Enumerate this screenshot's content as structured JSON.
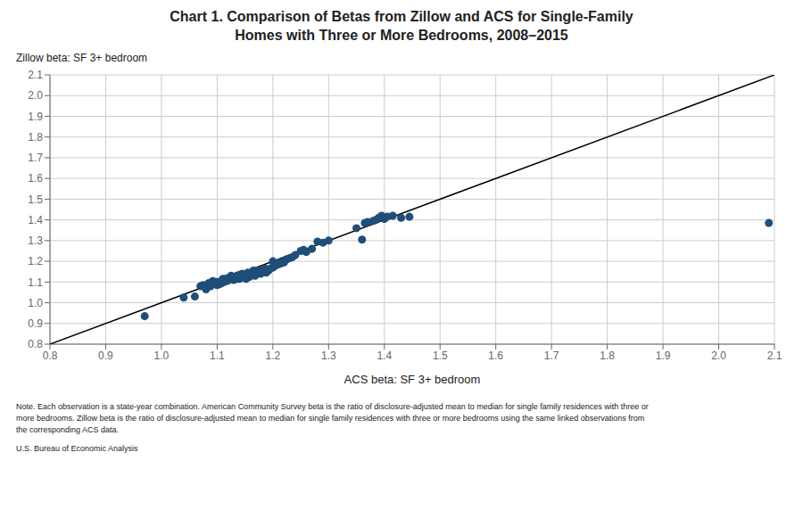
{
  "chart_data": {
    "type": "scatter",
    "title": "Chart 1. Comparison of Betas from Zillow and ACS for Single-Family\nHomes with Three or More Bedrooms, 2008–2015",
    "x_label": "ACS beta: SF 3+ bedroom",
    "y_label": "Zillow beta: SF 3+ bedroom",
    "xlim": [
      0.8,
      2.1
    ],
    "ylim": [
      0.8,
      2.1
    ],
    "xticks": [
      0.8,
      0.9,
      {
        "value": 1.0,
        "label": "1.0"
      },
      1.1,
      1.2,
      1.3,
      1.4,
      1.5,
      1.6,
      1.7,
      1.8,
      1.9,
      {
        "value": 2.0,
        "label": "2.0"
      },
      2.1
    ],
    "yticks": [
      0.8,
      0.9,
      {
        "value": 1.0,
        "label": "1.0"
      },
      1.1,
      1.2,
      1.3,
      1.4,
      1.5,
      1.6,
      1.7,
      1.8,
      1.9,
      {
        "value": 2.0,
        "label": "2.0"
      },
      2.1
    ],
    "grid": true,
    "annotations": [
      "Note. Each observation is a state-year combination. American Community Survey beta is the ratio of disclosure-adjusted mean to median for single family residences with three or\nmore bedrooms. Zillow beta is the ratio of disclosure-adjusted mean to median for single family residences with three or more bedrooms using the same linked observations from\nthe corresponding ACS data.",
      "U.S. Bureau of Economic Analysis"
    ],
    "series": [
      {
        "type": "scatter",
        "color": "#1F4E79",
        "x": [
          0.97,
          1.04,
          1.06,
          1.07,
          1.075,
          1.08,
          1.082,
          1.085,
          1.088,
          1.09,
          1.092,
          1.095,
          1.098,
          1.1,
          1.1,
          1.102,
          1.105,
          1.105,
          1.108,
          1.11,
          1.11,
          1.112,
          1.115,
          1.115,
          1.118,
          1.12,
          1.12,
          1.122,
          1.125,
          1.125,
          1.128,
          1.13,
          1.13,
          1.132,
          1.135,
          1.135,
          1.138,
          1.14,
          1.14,
          1.142,
          1.145,
          1.145,
          1.15,
          1.15,
          1.152,
          1.155,
          1.158,
          1.16,
          1.162,
          1.165,
          1.168,
          1.17,
          1.172,
          1.175,
          1.178,
          1.18,
          1.182,
          1.185,
          1.188,
          1.19,
          1.192,
          1.195,
          1.2,
          1.2,
          1.202,
          1.205,
          1.21,
          1.212,
          1.215,
          1.22,
          1.222,
          1.225,
          1.23,
          1.235,
          1.24,
          1.25,
          1.255,
          1.26,
          1.27,
          1.28,
          1.29,
          1.3,
          1.35,
          1.36,
          1.365,
          1.37,
          1.38,
          1.385,
          1.39,
          1.395,
          1.4,
          1.405,
          1.415,
          1.43,
          1.445,
          2.09
        ],
        "values": [
          0.935,
          1.025,
          1.03,
          1.08,
          1.085,
          1.065,
          1.075,
          1.095,
          1.08,
          1.09,
          1.105,
          1.095,
          1.1,
          1.085,
          1.095,
          1.1,
          1.1,
          1.09,
          1.095,
          1.105,
          1.115,
          1.1,
          1.115,
          1.11,
          1.105,
          1.11,
          1.12,
          1.115,
          1.12,
          1.13,
          1.115,
          1.125,
          1.11,
          1.12,
          1.13,
          1.12,
          1.115,
          1.135,
          1.115,
          1.125,
          1.13,
          1.14,
          1.12,
          1.135,
          1.115,
          1.145,
          1.125,
          1.14,
          1.135,
          1.155,
          1.13,
          1.145,
          1.155,
          1.15,
          1.14,
          1.16,
          1.15,
          1.165,
          1.145,
          1.16,
          1.155,
          1.165,
          1.17,
          1.2,
          1.175,
          1.18,
          1.185,
          1.195,
          1.19,
          1.195,
          1.205,
          1.21,
          1.215,
          1.22,
          1.23,
          1.25,
          1.255,
          1.245,
          1.26,
          1.295,
          1.29,
          1.3,
          1.36,
          1.305,
          1.385,
          1.39,
          1.395,
          1.4,
          1.41,
          1.42,
          1.405,
          1.415,
          1.42,
          1.41,
          1.415,
          1.385
        ]
      },
      {
        "type": "line",
        "color": "#000000",
        "x": [
          0.8,
          2.1
        ],
        "values": [
          0.8,
          2.1
        ]
      }
    ]
  }
}
